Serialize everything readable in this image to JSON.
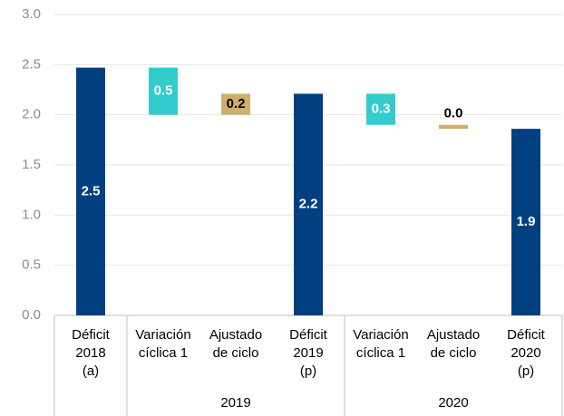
{
  "chart_data": {
    "type": "waterfall",
    "categories": [
      "Déficit\n2018\n(a)",
      "Variación\ncíclica 1",
      "Ajustado\nde ciclo",
      "Déficit\n2019\n(p)",
      "Variación\ncíclica 1",
      "Ajustado\nde ciclo",
      "Déficit\n2020\n(p)"
    ],
    "groups": [
      null,
      "2019",
      "2019",
      "2019",
      "2020",
      "2020",
      "2020"
    ],
    "measure": [
      "total",
      "decrease",
      "increase",
      "total",
      "decrease",
      "decrease",
      "total"
    ],
    "values": [
      2.47,
      0.47,
      0.21,
      2.21,
      0.31,
      0.04,
      1.86
    ],
    "value_labels": [
      "2.5",
      "0.5",
      "0.2",
      "2.2",
      "0.3",
      "0.0",
      "1.9"
    ],
    "colors": [
      "#004080",
      "#33cccc",
      "#cdb06a",
      "#004080",
      "#33cccc",
      "#cdb06a",
      "#004080"
    ],
    "label_colors": [
      "#ffffff",
      "#ffffff",
      "#000000",
      "#ffffff",
      "#ffffff",
      "#000000",
      "#ffffff"
    ],
    "ylim": [
      0,
      3
    ],
    "yticks": [
      {
        "value": 0,
        "label": "0.0"
      },
      {
        "value": 0.5,
        "label": "0.5"
      },
      {
        "value": 1,
        "label": "1.0"
      },
      {
        "value": 1.5,
        "label": "1.5"
      },
      {
        "value": 2,
        "label": "2.0"
      },
      {
        "value": 2.5,
        "label": "2.5"
      },
      {
        "value": 3,
        "label": "3.0"
      }
    ],
    "grid": true
  }
}
